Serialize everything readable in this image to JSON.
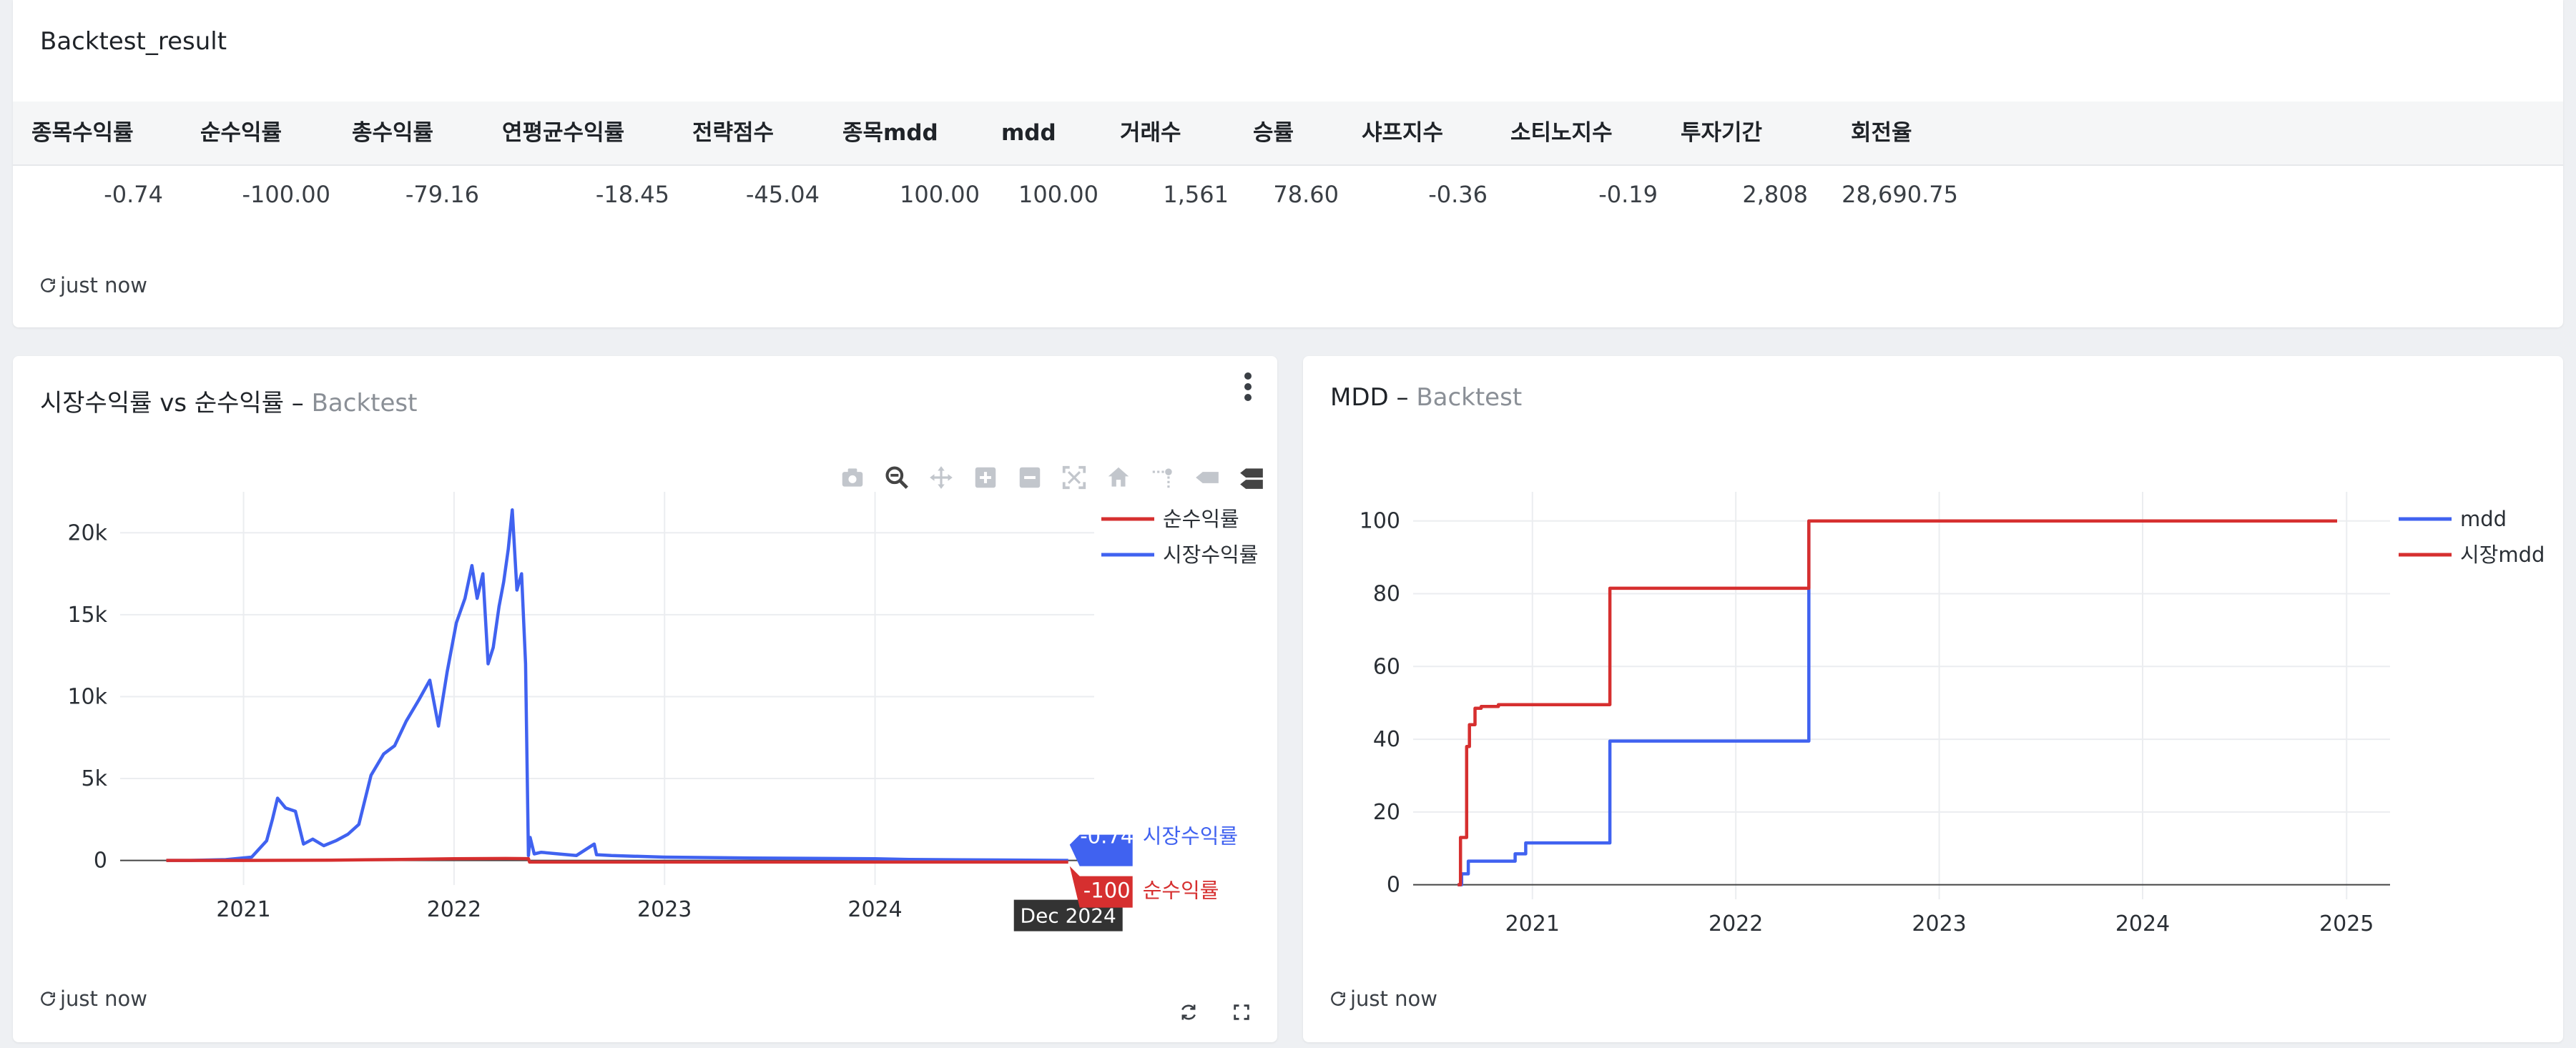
{
  "top_panel": {
    "title": "Backtest_result",
    "columns": [
      "종목수익률",
      "순수익률",
      "총수익률",
      "연평균수익률",
      "전략점수",
      "종목mdd",
      "mdd",
      "거래수",
      "승률",
      "샤프지수",
      "소티노지수",
      "투자기간",
      "회전율"
    ],
    "row": [
      "-0.74",
      "-100.00",
      "-79.16",
      "-18.45",
      "-45.04",
      "100.00",
      "100.00",
      "1,561",
      "78.60",
      "-0.36",
      "-0.19",
      "2,808",
      "28,690.75"
    ],
    "refresh_text": "just now"
  },
  "left_panel": {
    "title_main": "시장수익률 vs 순수익률 – ",
    "title_sub": "Backtest",
    "refresh_text": "just now",
    "hover": {
      "x_label": "Dec 2024",
      "market_value": "-0.74",
      "market_name": "시장수익률",
      "net_value": "-100",
      "net_name": "순수익률"
    }
  },
  "right_panel": {
    "title_main": "MDD – ",
    "title_sub": "Backtest",
    "refresh_text": "just now"
  },
  "colors": {
    "blue": "#4062f0",
    "red": "#d62f2f",
    "grid": "#ebedf0"
  },
  "icons": [
    "refresh-icon",
    "camera-icon",
    "zoom-icon",
    "pan-icon",
    "zoom-in-icon",
    "zoom-out-icon",
    "autoscale-icon",
    "home-icon",
    "spike-lines-icon",
    "hover-closest-icon",
    "hover-compare-icon",
    "kebab-menu-icon",
    "fullscreen-icon"
  ],
  "chart_data": [
    {
      "type": "line",
      "title": "",
      "xlabel": "",
      "ylabel": "",
      "x_ticks": [
        "2021",
        "2022",
        "2023",
        "2024"
      ],
      "y_ticks": [
        "0",
        "5k",
        "10k",
        "15k",
        "20k"
      ],
      "ylim": [
        -1500,
        22500
      ],
      "legend": "top-right",
      "series": [
        {
          "name": "순수익률",
          "color": "#d62f2f",
          "x": [
            "2020-08-20",
            "2021-01-01",
            "2021-06-01",
            "2021-10-01",
            "2022-01-01",
            "2022-04-01",
            "2022-05-10",
            "2022-05-12",
            "2022-06-01",
            "2023-01-01",
            "2024-01-01",
            "2024-12-01"
          ],
          "y": [
            0,
            0,
            20,
            60,
            100,
            120,
            110,
            -100,
            -100,
            -100,
            -100,
            -100
          ]
        },
        {
          "name": "시장수익률",
          "color": "#4062f0",
          "x": [
            "2020-08-20",
            "2020-10-01",
            "2020-12-01",
            "2021-01-15",
            "2021-02-10",
            "2021-02-20",
            "2021-03-01",
            "2021-03-15",
            "2021-04-01",
            "2021-04-15",
            "2021-05-01",
            "2021-05-20",
            "2021-06-10",
            "2021-07-01",
            "2021-07-20",
            "2021-08-10",
            "2021-09-01",
            "2021-09-20",
            "2021-10-10",
            "2021-11-01",
            "2021-11-20",
            "2021-12-05",
            "2021-12-20",
            "2022-01-05",
            "2022-01-20",
            "2022-02-01",
            "2022-02-10",
            "2022-02-20",
            "2022-03-01",
            "2022-03-10",
            "2022-03-20",
            "2022-03-28",
            "2022-04-05",
            "2022-04-12",
            "2022-04-20",
            "2022-04-28",
            "2022-05-05",
            "2022-05-10",
            "2022-05-13",
            "2022-05-20",
            "2022-06-01",
            "2022-07-01",
            "2022-08-01",
            "2022-09-01",
            "2022-09-05",
            "2022-10-01",
            "2023-01-01",
            "2023-06-01",
            "2024-01-01",
            "2024-03-01",
            "2024-06-01",
            "2024-12-01"
          ],
          "y": [
            0,
            0,
            50,
            200,
            1200,
            2500,
            3800,
            3200,
            3000,
            1000,
            1300,
            900,
            1200,
            1600,
            2200,
            5200,
            6500,
            7000,
            8500,
            9800,
            11000,
            8200,
            11500,
            14500,
            16000,
            18000,
            16000,
            17500,
            12000,
            13000,
            15500,
            17000,
            19000,
            21400,
            16500,
            17500,
            12000,
            300,
            1400,
            400,
            500,
            400,
            300,
            1000,
            350,
            300,
            200,
            150,
            100,
            60,
            40,
            -0.74
          ]
        }
      ]
    },
    {
      "type": "line",
      "title": "",
      "xlabel": "",
      "ylabel": "",
      "x_ticks": [
        "2021",
        "2022",
        "2023",
        "2024",
        "2025"
      ],
      "y_ticks": [
        "0",
        "20",
        "40",
        "60",
        "80",
        "100"
      ],
      "ylim": [
        -4,
        108
      ],
      "legend": "top-right",
      "series": [
        {
          "name": "mdd",
          "color": "#4062f0",
          "x": [
            "2020-08-20",
            "2020-08-27",
            "2020-09-05",
            "2020-09-08",
            "2020-09-15",
            "2020-11-20",
            "2020-12-01",
            "2020-12-20",
            "2021-05-19",
            "2021-05-20",
            "2022-05-10",
            "2022-05-12",
            "2024-12-15"
          ],
          "y": [
            0,
            3,
            3,
            6.5,
            6.5,
            6.5,
            8.5,
            11.5,
            11.5,
            39.5,
            39.5,
            100,
            100
          ]
        },
        {
          "name": "시장mdd",
          "color": "#d62f2f",
          "x": [
            "2020-08-20",
            "2020-08-25",
            "2020-09-01",
            "2020-09-05",
            "2020-09-10",
            "2020-09-20",
            "2020-10-01",
            "2020-11-01",
            "2021-05-19",
            "2021-05-20",
            "2022-05-10",
            "2022-05-12",
            "2024-12-15"
          ],
          "y": [
            0,
            13,
            13,
            38,
            44,
            48.5,
            49,
            49.5,
            49.5,
            81.5,
            81.5,
            100,
            100
          ]
        }
      ]
    }
  ]
}
